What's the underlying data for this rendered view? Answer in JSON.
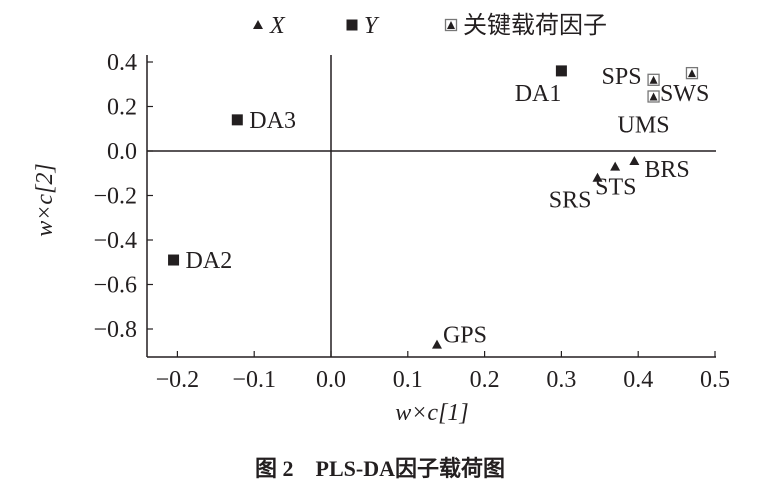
{
  "chart_data": {
    "type": "scatter",
    "title": "图 2    PLS-DA因子载荷图",
    "xlabel": "w×c[1]",
    "ylabel": "w×c[2]",
    "xlim": [
      -0.25,
      0.5
    ],
    "ylim": [
      -0.95,
      0.45
    ],
    "xticks": [
      "−0.2",
      "−0.1",
      "0.0",
      "0.1",
      "0.2",
      "0.3",
      "0.4",
      "0.5"
    ],
    "xtick_values": [
      -0.2,
      -0.1,
      0.0,
      0.1,
      0.2,
      0.3,
      0.4,
      0.5
    ],
    "yticks": [
      "0.4",
      "0.2",
      "0.0",
      "−0.2",
      "−0.4",
      "−0.6",
      "−0.8"
    ],
    "ytick_values": [
      0.4,
      0.2,
      0.0,
      -0.2,
      -0.4,
      -0.6,
      -0.8
    ],
    "grid": false,
    "zero_lines": true,
    "legend_position": "top",
    "legend": [
      {
        "name": "X",
        "marker": "triangle"
      },
      {
        "name": "Y",
        "marker": "square"
      },
      {
        "name": "关键载荷因子",
        "marker": "boxed-triangle"
      }
    ],
    "color": "#231f20",
    "series": [
      {
        "name": "X",
        "points": [
          {
            "label": "GPS",
            "x": 0.138,
            "y": -0.87
          },
          {
            "label": "BRS",
            "x": 0.395,
            "y": -0.045
          },
          {
            "label": "STS",
            "x": 0.37,
            "y": -0.07
          },
          {
            "label": "SRS",
            "x": 0.347,
            "y": -0.12
          }
        ]
      },
      {
        "name": "Y",
        "points": [
          {
            "label": "DA1",
            "x": 0.3,
            "y": 0.36
          },
          {
            "label": "DA3",
            "x": -0.122,
            "y": 0.14
          },
          {
            "label": "DA2",
            "x": -0.205,
            "y": -0.49
          }
        ]
      },
      {
        "name": "关键载荷因子",
        "points": [
          {
            "label": "SPS",
            "x": 0.42,
            "y": 0.32
          },
          {
            "label": "SWS",
            "x": 0.47,
            "y": 0.35
          },
          {
            "label": "UMS",
            "x": 0.42,
            "y": 0.245
          }
        ]
      }
    ]
  }
}
